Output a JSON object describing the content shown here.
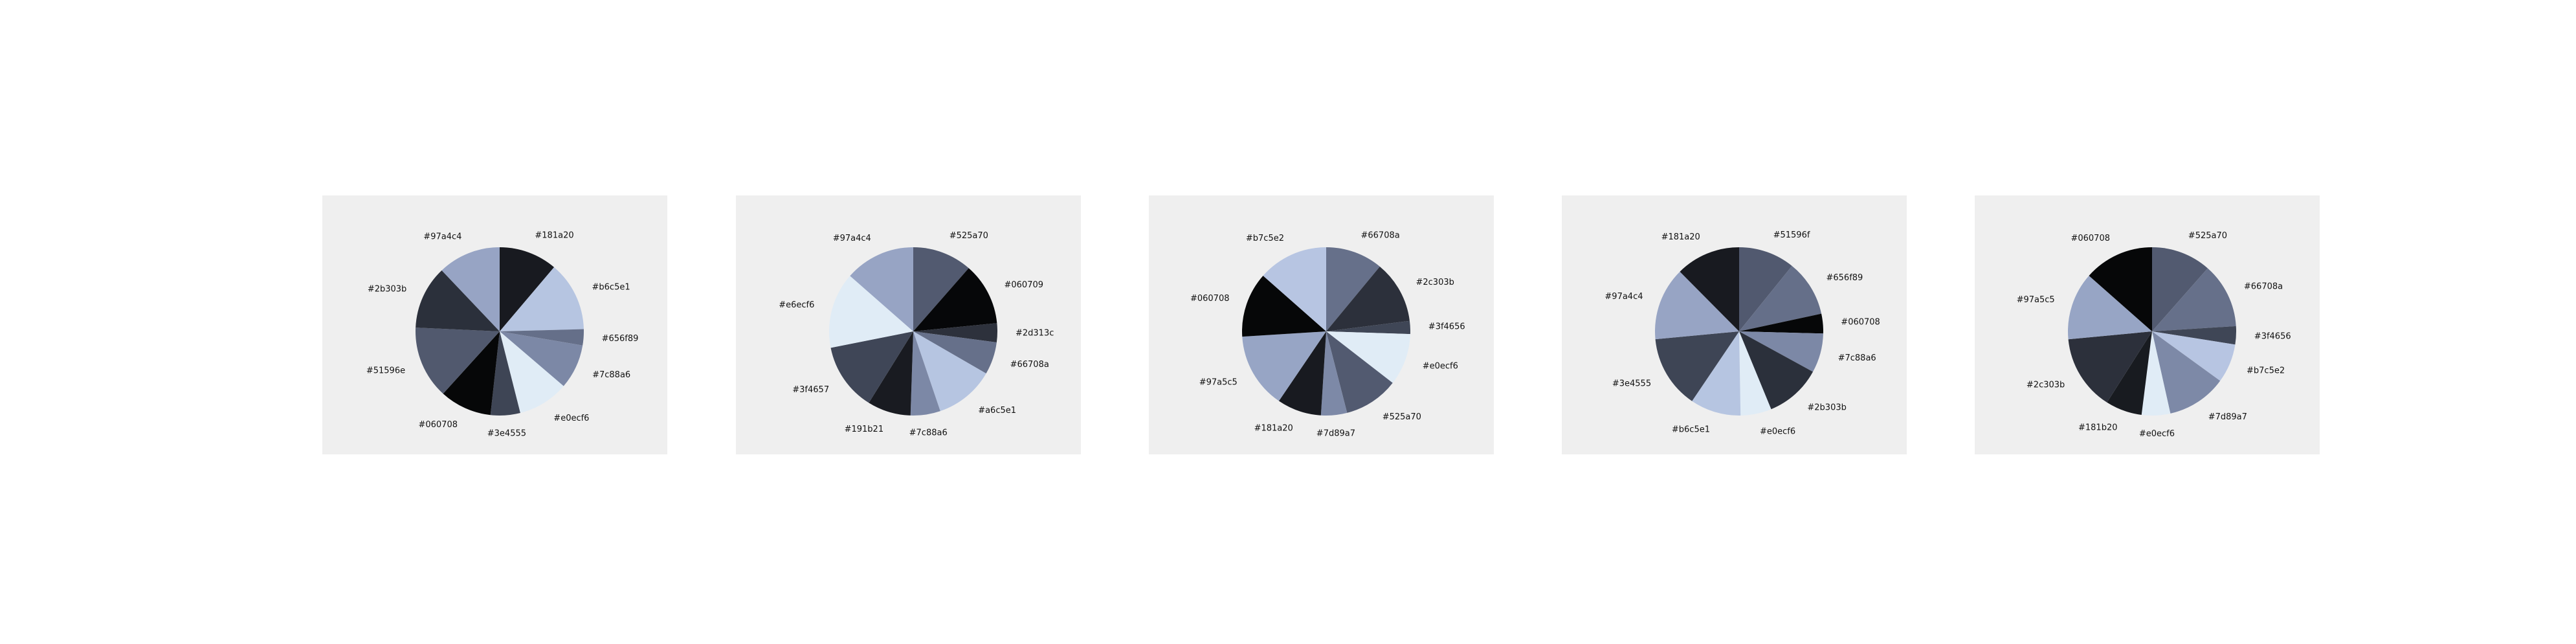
{
  "chart_data": [
    {
      "type": "pie",
      "labels": [
        "#181a20",
        "#b6c5e1",
        "#656f89",
        "#7c88a6",
        "#e0ecf6",
        "#3e4555",
        "#060708",
        "#51596e",
        "#2b303b",
        "#97a4c4"
      ],
      "values": [
        11.2,
        13.4,
        3.1,
        8.6,
        9.8,
        5.7,
        10.0,
        14.0,
        12.2,
        12.1
      ],
      "colors": [
        "#181a20",
        "#b6c5e1",
        "#656f89",
        "#7c88a6",
        "#e0ecf6",
        "#3e4555",
        "#060708",
        "#51596e",
        "#2b303b",
        "#97a4c4"
      ]
    },
    {
      "type": "pie",
      "labels": [
        "#525a70",
        "#060709",
        "#2d313c",
        "#66708a",
        "#a6c5e1",
        "#7c88a6",
        "#191b21",
        "#3f4657",
        "#e6ecf6",
        "#97a4c4"
      ],
      "values": [
        11.0,
        11.5,
        3.5,
        6.0,
        11.0,
        5.5,
        8.0,
        12.5,
        14.0,
        13.0
      ],
      "colors": [
        "#525a70",
        "#060709",
        "#2d313c",
        "#66708a",
        "#b6c5e1",
        "#7c88a6",
        "#191b21",
        "#3f4657",
        "#e0ecf6",
        "#97a4c4"
      ]
    },
    {
      "type": "pie",
      "labels": [
        "#66708a",
        "#2c303b",
        "#3f4656",
        "#e0ecf6",
        "#525a70",
        "#7d89a7",
        "#181a20",
        "#97a5c5",
        "#060708",
        "#b7c5e2"
      ],
      "values": [
        11.0,
        12.0,
        2.5,
        10.0,
        10.5,
        5.0,
        8.5,
        14.5,
        12.5,
        13.5
      ],
      "colors": [
        "#66708a",
        "#2c303b",
        "#3f4656",
        "#e0ecf6",
        "#525a70",
        "#7d89a7",
        "#181a20",
        "#97a5c5",
        "#060708",
        "#b7c5e2"
      ]
    },
    {
      "type": "pie",
      "labels": [
        "#51596f",
        "#656f89",
        "#060708",
        "#7c88a6",
        "#2b303b",
        "#e0ecf6",
        "#b6c5e1",
        "#3e4555",
        "#97a4c4",
        "#181a20"
      ],
      "values": [
        10.0,
        10.0,
        3.5,
        7.0,
        10.0,
        5.5,
        9.0,
        13.0,
        13.0,
        11.5
      ],
      "colors": [
        "#51596f",
        "#656f89",
        "#060708",
        "#7c88a6",
        "#2b303b",
        "#e0ecf6",
        "#b6c5e1",
        "#3e4555",
        "#97a4c4",
        "#181a20"
      ]
    },
    {
      "type": "pie",
      "labels": [
        "#525a70",
        "#66708a",
        "#3f4656",
        "#b7c5e2",
        "#7d89a7",
        "#e0ecf6",
        "#181b20",
        "#2c303b",
        "#97a5c5",
        "#060708"
      ],
      "values": [
        11.5,
        12.5,
        3.5,
        7.5,
        11.5,
        5.5,
        7.0,
        14.5,
        13.0,
        13.5
      ],
      "colors": [
        "#525a70",
        "#66708a",
        "#3f4656",
        "#b7c5e2",
        "#7d89a7",
        "#e0ecf6",
        "#181b20",
        "#2c303b",
        "#97a5c5",
        "#060708"
      ]
    }
  ]
}
